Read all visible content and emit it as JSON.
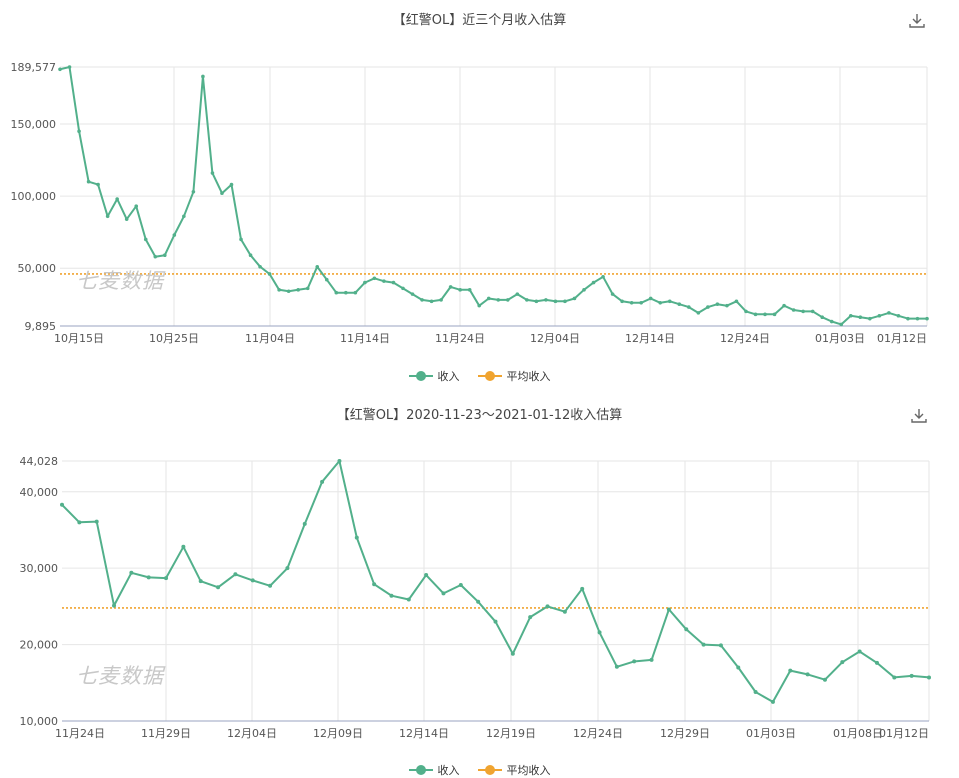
{
  "watermark": "七麦数据",
  "chart_data": [
    {
      "type": "line",
      "title": "【红警OL】近三个月收入估算",
      "x_labels": [
        "10月15日",
        "10月25日",
        "11月04日",
        "11月14日",
        "11月24日",
        "12月04日",
        "12月14日",
        "12月24日",
        "01月03日",
        "01月12日"
      ],
      "y_ticks": [
        9895,
        50000,
        100000,
        150000,
        189577
      ],
      "y_tick_labels": [
        "9,895",
        "50,000",
        "100,000",
        "150,000",
        "189,577"
      ],
      "ylim": [
        9895,
        189577
      ],
      "average": 46000,
      "legend": [
        "收入",
        "平均收入"
      ],
      "series": [
        {
          "name": "收入",
          "color": "#52b08b",
          "values": [
            188000,
            189577,
            145000,
            110000,
            108000,
            86000,
            98000,
            84000,
            93000,
            70000,
            58000,
            59000,
            73000,
            86000,
            103000,
            183000,
            116000,
            102000,
            108000,
            70000,
            59000,
            51000,
            46000,
            35000,
            34000,
            35000,
            36000,
            51000,
            42000,
            33000,
            33000,
            33000,
            40000,
            43000,
            41000,
            40000,
            36000,
            32000,
            28000,
            27000,
            28000,
            37000,
            35000,
            35000,
            24000,
            29000,
            28000,
            28000,
            32000,
            28000,
            27000,
            28000,
            27000,
            27000,
            29000,
            35000,
            40000,
            44000,
            32000,
            27000,
            26000,
            26000,
            29000,
            26000,
            27000,
            25000,
            23000,
            19000,
            23000,
            25000,
            24000,
            27000,
            20000,
            18000,
            18000,
            18000,
            24000,
            21000,
            20000,
            20000,
            16000,
            13000,
            11000,
            17000,
            16000,
            15000,
            17000,
            19000,
            17000,
            15000,
            15000,
            15000
          ]
        },
        {
          "name": "平均收入",
          "color": "#f0a430",
          "values": []
        }
      ]
    },
    {
      "type": "line",
      "title": "【红警OL】2020-11-23～2021-01-12收入估算",
      "x_labels": [
        "11月24日",
        "11月29日",
        "12月04日",
        "12月09日",
        "12月14日",
        "12月19日",
        "12月24日",
        "12月29日",
        "01月03日",
        "01月08日",
        "01月12日"
      ],
      "y_ticks": [
        10000,
        20000,
        30000,
        40000,
        44028
      ],
      "y_tick_labels": [
        "10,000",
        "20,000",
        "30,000",
        "40,000",
        "44,028"
      ],
      "ylim": [
        10000,
        44028
      ],
      "average": 24800,
      "legend": [
        "收入",
        "平均收入"
      ],
      "series": [
        {
          "name": "收入",
          "color": "#52b08b",
          "values": [
            38300,
            36000,
            36100,
            25100,
            29400,
            28800,
            28700,
            32800,
            28300,
            27500,
            29200,
            28400,
            27700,
            30000,
            35800,
            41300,
            44028,
            34000,
            27900,
            26400,
            25900,
            29100,
            26700,
            27800,
            25600,
            23000,
            18800,
            23600,
            25000,
            24300,
            27300,
            21600,
            17100,
            17800,
            18000,
            24600,
            22000,
            20000,
            19900,
            17000,
            13800,
            12500,
            16600,
            16100,
            15400,
            17700,
            19100,
            17600,
            15700,
            15900,
            15700
          ]
        },
        {
          "name": "平均收入",
          "color": "#f0a430",
          "values": []
        }
      ]
    }
  ]
}
